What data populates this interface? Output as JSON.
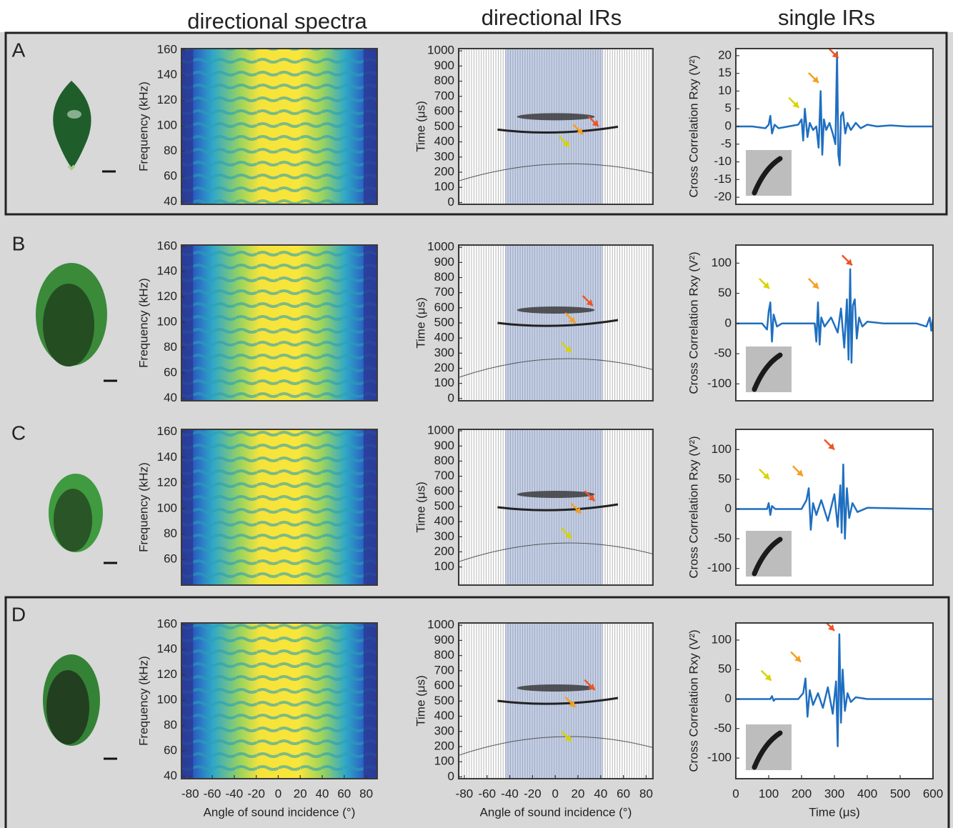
{
  "column_titles": [
    "directional spectra",
    "directional IRs",
    "single IRs"
  ],
  "panel_labels": [
    "A",
    "B",
    "C",
    "D"
  ],
  "chart_data": [
    {
      "type": "heatmap",
      "ylabel": "Frequency (kHz)",
      "ylim": [
        38,
        161
      ],
      "yticks": [
        40,
        60,
        80,
        100,
        120,
        140,
        160
      ]
    },
    {
      "type": "ir_image",
      "ylabel": "Time (μs)",
      "ylim": [
        -12,
        1015
      ],
      "yticks": [
        0,
        100,
        200,
        300,
        400,
        500,
        600,
        700,
        800,
        900,
        1000
      ]
    },
    {
      "type": "line",
      "ylabel": "Cross Correlation Rxy (V²)",
      "color": "#1f6fc0",
      "xlim": [
        0,
        600
      ],
      "ylim": [
        -22,
        22
      ],
      "yticks": [
        -20,
        -15,
        -10,
        -5,
        0,
        5,
        10,
        15,
        20
      ],
      "x": [
        0,
        50,
        90,
        100,
        105,
        110,
        118,
        130,
        160,
        190,
        200,
        205,
        210,
        218,
        225,
        235,
        245,
        252,
        258,
        263,
        268,
        275,
        285,
        295,
        303,
        308,
        312,
        316,
        320,
        326,
        333,
        340,
        350,
        365,
        380,
        400,
        430,
        470,
        520,
        600
      ],
      "values": [
        0,
        0,
        -0.5,
        0.5,
        3,
        -2,
        0.5,
        -0.5,
        0,
        0.5,
        2,
        -4,
        5,
        -3,
        1,
        -1,
        0,
        -6,
        10,
        -8,
        2,
        -1,
        1,
        -2,
        -5,
        21,
        -8,
        -11,
        3,
        4,
        -2,
        1,
        -1,
        1,
        -0.5,
        0.5,
        0,
        0.3,
        0,
        0
      ]
    },
    {
      "type": "heatmap",
      "ylabel": "Frequency (kHz)",
      "ylim": [
        38,
        161
      ],
      "yticks": [
        40,
        60,
        80,
        100,
        120,
        140,
        160
      ]
    },
    {
      "type": "ir_image",
      "ylabel": "Time (μs)",
      "ylim": [
        -15,
        1015
      ],
      "yticks": [
        0,
        100,
        200,
        300,
        400,
        500,
        600,
        700,
        800,
        900,
        1000
      ]
    },
    {
      "type": "line",
      "ylabel": "Cross Correlation Rxy (V²)",
      "color": "#1f6fc0",
      "xlim": [
        0,
        600
      ],
      "ylim": [
        -128,
        130
      ],
      "yticks": [
        -100,
        -50,
        0,
        50,
        100
      ],
      "x": [
        0,
        80,
        95,
        100,
        105,
        110,
        115,
        125,
        140,
        200,
        240,
        245,
        250,
        255,
        260,
        270,
        290,
        310,
        320,
        330,
        338,
        343,
        348,
        352,
        356,
        362,
        368,
        375,
        385,
        400,
        450,
        500,
        550,
        580,
        590,
        595,
        600
      ],
      "values": [
        0,
        0,
        -10,
        20,
        35,
        -30,
        15,
        -5,
        0,
        0,
        0,
        -30,
        35,
        -35,
        10,
        -5,
        10,
        -15,
        25,
        -40,
        40,
        -60,
        90,
        -65,
        30,
        40,
        -25,
        10,
        -5,
        3,
        0,
        0,
        0,
        -5,
        10,
        -12,
        8
      ]
    },
    {
      "type": "heatmap",
      "ylabel": "Frequency (kHz)",
      "ylim": [
        40,
        162
      ],
      "yticks": [
        60,
        80,
        100,
        120,
        140,
        160
      ]
    },
    {
      "type": "ir_image",
      "ylabel": "Time (μs)",
      "ylim": [
        -20,
        1010
      ],
      "yticks": [
        100,
        200,
        300,
        400,
        500,
        600,
        700,
        800,
        900,
        1000
      ]
    },
    {
      "type": "line",
      "ylabel": "Cross Correlation Rxy (V²)",
      "color": "#1f6fc0",
      "xlim": [
        0,
        600
      ],
      "ylim": [
        -128,
        134
      ],
      "yticks": [
        -100,
        -50,
        0,
        50,
        100
      ],
      "x": [
        0,
        95,
        100,
        105,
        110,
        120,
        200,
        215,
        222,
        228,
        235,
        245,
        260,
        280,
        300,
        310,
        318,
        322,
        327,
        332,
        338,
        345,
        355,
        370,
        400,
        600
      ],
      "values": [
        0,
        0,
        10,
        -10,
        5,
        0,
        0,
        15,
        35,
        -35,
        10,
        -10,
        15,
        -20,
        25,
        -30,
        40,
        -40,
        75,
        -50,
        35,
        -15,
        10,
        -5,
        2,
        0
      ]
    },
    {
      "type": "heatmap",
      "ylabel": "Frequency (kHz)",
      "xlabel": "Angle of sound incidence (°)",
      "xlim": [
        -88,
        90
      ],
      "xticks": [
        -80,
        -60,
        -40,
        -20,
        0,
        20,
        40,
        60,
        80
      ],
      "ylim": [
        38,
        161
      ],
      "yticks": [
        40,
        60,
        80,
        100,
        120,
        140,
        160
      ]
    },
    {
      "type": "ir_image",
      "ylabel": "Time (μs)",
      "xlabel": "Angle of sound incidence (°)",
      "xlim": [
        -85,
        86
      ],
      "xticks": [
        -80,
        -60,
        -40,
        -20,
        0,
        20,
        40,
        60,
        80
      ],
      "ylim": [
        -12,
        1015
      ],
      "yticks": [
        0,
        100,
        200,
        300,
        400,
        500,
        600,
        700,
        800,
        900,
        1000
      ]
    },
    {
      "type": "line",
      "ylabel": "Cross Correlation Rxy (V²)",
      "xlabel": "Time (μs)",
      "color": "#1f6fc0",
      "xlim": [
        0,
        600
      ],
      "xticks": [
        0,
        100,
        200,
        300,
        400,
        500,
        600
      ],
      "ylim": [
        -135,
        129
      ],
      "yticks": [
        -100,
        -50,
        0,
        50,
        100
      ],
      "x": [
        0,
        105,
        110,
        115,
        120,
        190,
        205,
        212,
        218,
        225,
        235,
        250,
        265,
        280,
        295,
        305,
        310,
        315,
        320,
        325,
        332,
        340,
        350,
        365,
        400,
        600
      ],
      "values": [
        0,
        0,
        5,
        -3,
        0,
        0,
        10,
        35,
        -30,
        15,
        -10,
        10,
        -15,
        20,
        -25,
        30,
        -80,
        110,
        -40,
        50,
        -20,
        10,
        -5,
        3,
        0,
        0
      ]
    }
  ]
}
